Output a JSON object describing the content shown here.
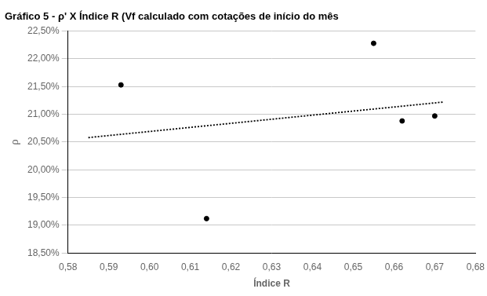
{
  "chart_data": {
    "type": "scatter",
    "title": "Gráfico 5 - ρ' X Índice R (Vf calculado com cotações de início do mês",
    "xlabel": "Índice R",
    "ylabel": "ρ",
    "series": [
      {
        "type": "scatter",
        "color": "#000000",
        "marker": "circle",
        "x": [
          0.593,
          0.614,
          0.655,
          0.662,
          0.67
        ],
        "values": [
          0.2153,
          0.1912,
          0.2228,
          0.2088,
          0.2097
        ]
      },
      {
        "type": "line",
        "color": "#000000",
        "line_style": "dotted",
        "x": [
          0.585,
          0.672
        ],
        "values": [
          0.2058,
          0.2122
        ]
      }
    ],
    "xlim": [
      0.58,
      0.68
    ],
    "ylim": [
      0.185,
      0.225
    ],
    "xticks": [
      {
        "value": 0.58,
        "label": "0,58"
      },
      {
        "value": 0.59,
        "label": "0,59"
      },
      {
        "value": 0.6,
        "label": "0,60"
      },
      {
        "value": 0.61,
        "label": "0,61"
      },
      {
        "value": 0.62,
        "label": "0,62"
      },
      {
        "value": 0.63,
        "label": "0,63"
      },
      {
        "value": 0.64,
        "label": "0,64"
      },
      {
        "value": 0.65,
        "label": "0,65"
      },
      {
        "value": 0.66,
        "label": "0,66"
      },
      {
        "value": 0.67,
        "label": "0,67"
      },
      {
        "value": 0.68,
        "label": "0,68"
      }
    ],
    "yticks": [
      {
        "value": 0.185,
        "label": "18,50%"
      },
      {
        "value": 0.19,
        "label": "19,00%"
      },
      {
        "value": 0.195,
        "label": "19,50%"
      },
      {
        "value": 0.2,
        "label": "20,00%"
      },
      {
        "value": 0.205,
        "label": "20,50%"
      },
      {
        "value": 0.21,
        "label": "21,00%"
      },
      {
        "value": 0.215,
        "label": "21,50%"
      },
      {
        "value": 0.22,
        "label": "22,00%"
      },
      {
        "value": 0.225,
        "label": "22,50%"
      }
    ],
    "grid": "y"
  }
}
